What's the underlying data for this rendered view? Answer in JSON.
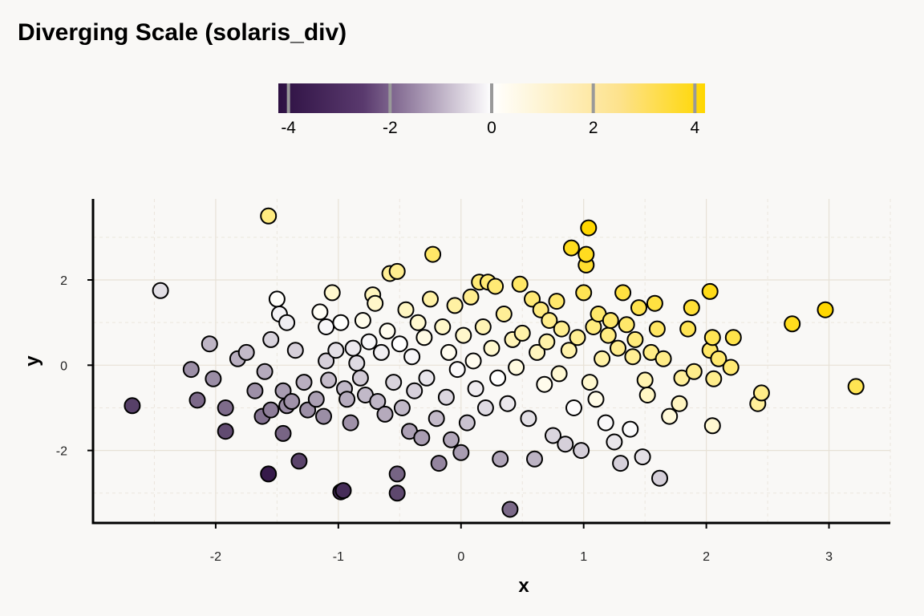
{
  "chart_data": {
    "type": "scatter",
    "title": "Diverging Scale (solaris_div)",
    "xlabel": "x",
    "ylabel": "y",
    "xlim": [
      -3.0,
      3.5
    ],
    "ylim": [
      -3.7,
      3.9
    ],
    "x_ticks": [
      -2,
      -1,
      0,
      1,
      2,
      3
    ],
    "y_ticks": [
      -2,
      0,
      2
    ],
    "grid": true,
    "legend": "colorbar top-center",
    "colorbar": {
      "title": "",
      "range": [
        -4.2,
        4.2
      ],
      "ticks": [
        -4,
        -2,
        0,
        2,
        4
      ],
      "colors": {
        "low": "#2d1042",
        "mid": "#ffffff",
        "high": "#ffd700"
      }
    },
    "colors": {
      "background": "#f9f8f6",
      "grid_major": "#e7e1d6",
      "grid_minor": "#ebe6dd",
      "point_edge": "#000000"
    },
    "points": [
      {
        "x": -2.68,
        "y": -0.95
      },
      {
        "x": -2.45,
        "y": 1.75
      },
      {
        "x": -2.05,
        "y": 0.5
      },
      {
        "x": -2.2,
        "y": -0.1
      },
      {
        "x": -2.15,
        "y": -0.82
      },
      {
        "x": -2.02,
        "y": -0.32
      },
      {
        "x": -1.92,
        "y": -1.0
      },
      {
        "x": -1.92,
        "y": -1.55
      },
      {
        "x": -1.82,
        "y": 0.15
      },
      {
        "x": -1.75,
        "y": 0.3
      },
      {
        "x": -1.68,
        "y": -0.6
      },
      {
        "x": -1.6,
        "y": -0.15
      },
      {
        "x": -1.62,
        "y": -1.2
      },
      {
        "x": -1.55,
        "y": -1.05
      },
      {
        "x": -1.57,
        "y": 3.5
      },
      {
        "x": -1.57,
        "y": -2.55
      },
      {
        "x": -1.55,
        "y": 0.6
      },
      {
        "x": -1.5,
        "y": 1.55
      },
      {
        "x": -1.48,
        "y": 1.2
      },
      {
        "x": -1.42,
        "y": 1.0
      },
      {
        "x": -1.45,
        "y": -0.6
      },
      {
        "x": -1.45,
        "y": -1.6
      },
      {
        "x": -1.42,
        "y": -0.95
      },
      {
        "x": -1.38,
        "y": -0.85
      },
      {
        "x": -1.35,
        "y": 0.35
      },
      {
        "x": -1.32,
        "y": -2.25
      },
      {
        "x": -1.28,
        "y": -0.4
      },
      {
        "x": -1.25,
        "y": -1.05
      },
      {
        "x": -1.18,
        "y": -0.8
      },
      {
        "x": -1.15,
        "y": 1.25
      },
      {
        "x": -1.12,
        "y": -1.2
      },
      {
        "x": -1.1,
        "y": 0.9
      },
      {
        "x": -1.1,
        "y": 0.1
      },
      {
        "x": -1.08,
        "y": -0.35
      },
      {
        "x": -1.05,
        "y": 1.7
      },
      {
        "x": -1.02,
        "y": 0.35
      },
      {
        "x": -0.98,
        "y": 1.0
      },
      {
        "x": -0.98,
        "y": -2.97
      },
      {
        "x": -0.96,
        "y": -2.94
      },
      {
        "x": -0.95,
        "y": -0.55
      },
      {
        "x": -0.93,
        "y": -0.8
      },
      {
        "x": -0.9,
        "y": -1.35
      },
      {
        "x": -0.88,
        "y": 0.4
      },
      {
        "x": -0.85,
        "y": 0.05
      },
      {
        "x": -0.82,
        "y": -0.3
      },
      {
        "x": -0.8,
        "y": 1.05
      },
      {
        "x": -0.78,
        "y": -0.7
      },
      {
        "x": -0.75,
        "y": 0.55
      },
      {
        "x": -0.72,
        "y": 1.65
      },
      {
        "x": -0.7,
        "y": 1.45
      },
      {
        "x": -0.68,
        "y": -0.85
      },
      {
        "x": -0.65,
        "y": 0.3
      },
      {
        "x": -0.62,
        "y": -1.15
      },
      {
        "x": -0.6,
        "y": 0.8
      },
      {
        "x": -0.58,
        "y": 2.15
      },
      {
        "x": -0.55,
        "y": -0.4
      },
      {
        "x": -0.52,
        "y": 2.2
      },
      {
        "x": -0.52,
        "y": -2.55
      },
      {
        "x": -0.52,
        "y": -3.0
      },
      {
        "x": -0.5,
        "y": 0.5
      },
      {
        "x": -0.48,
        "y": -1.0
      },
      {
        "x": -0.45,
        "y": 1.3
      },
      {
        "x": -0.42,
        "y": -1.55
      },
      {
        "x": -0.4,
        "y": 0.2
      },
      {
        "x": -0.38,
        "y": -0.6
      },
      {
        "x": -0.35,
        "y": 1.0
      },
      {
        "x": -0.32,
        "y": -1.7
      },
      {
        "x": -0.3,
        "y": 0.65
      },
      {
        "x": -0.28,
        "y": -0.3
      },
      {
        "x": -0.25,
        "y": 1.55
      },
      {
        "x": -0.23,
        "y": 2.6
      },
      {
        "x": -0.2,
        "y": -1.25
      },
      {
        "x": -0.18,
        "y": -2.3
      },
      {
        "x": -0.15,
        "y": 0.9
      },
      {
        "x": -0.12,
        "y": -0.75
      },
      {
        "x": -0.1,
        "y": 0.3
      },
      {
        "x": -0.08,
        "y": -1.75
      },
      {
        "x": -0.05,
        "y": 1.4
      },
      {
        "x": -0.03,
        "y": -0.1
      },
      {
        "x": 0.0,
        "y": -2.05
      },
      {
        "x": 0.02,
        "y": 0.7
      },
      {
        "x": 0.05,
        "y": -1.35
      },
      {
        "x": 0.08,
        "y": 1.6
      },
      {
        "x": 0.1,
        "y": 0.1
      },
      {
        "x": 0.12,
        "y": -0.55
      },
      {
        "x": 0.15,
        "y": 1.95
      },
      {
        "x": 0.18,
        "y": 0.9
      },
      {
        "x": 0.2,
        "y": -1.0
      },
      {
        "x": 0.22,
        "y": 1.95
      },
      {
        "x": 0.25,
        "y": 0.4
      },
      {
        "x": 0.28,
        "y": 1.85
      },
      {
        "x": 0.3,
        "y": -0.3
      },
      {
        "x": 0.32,
        "y": -2.2
      },
      {
        "x": 0.35,
        "y": 1.2
      },
      {
        "x": 0.38,
        "y": -0.9
      },
      {
        "x": 0.4,
        "y": -3.38
      },
      {
        "x": 0.42,
        "y": 0.6
      },
      {
        "x": 0.45,
        "y": -0.05
      },
      {
        "x": 0.48,
        "y": 1.9
      },
      {
        "x": 0.5,
        "y": 0.75
      },
      {
        "x": 0.55,
        "y": -1.25
      },
      {
        "x": 0.58,
        "y": 1.55
      },
      {
        "x": 0.6,
        "y": -2.2
      },
      {
        "x": 0.62,
        "y": 0.3
      },
      {
        "x": 0.65,
        "y": 1.3
      },
      {
        "x": 0.68,
        "y": -0.45
      },
      {
        "x": 0.7,
        "y": 0.55
      },
      {
        "x": 0.72,
        "y": 1.05
      },
      {
        "x": 0.75,
        "y": -1.65
      },
      {
        "x": 0.78,
        "y": 1.5
      },
      {
        "x": 0.8,
        "y": -0.2
      },
      {
        "x": 0.82,
        "y": 0.85
      },
      {
        "x": 0.85,
        "y": -1.85
      },
      {
        "x": 0.88,
        "y": 0.35
      },
      {
        "x": 0.9,
        "y": 2.75
      },
      {
        "x": 0.92,
        "y": -1.0
      },
      {
        "x": 0.95,
        "y": 0.65
      },
      {
        "x": 0.98,
        "y": -2.0
      },
      {
        "x": 1.0,
        "y": 1.7
      },
      {
        "x": 1.02,
        "y": 2.35
      },
      {
        "x": 1.02,
        "y": 2.6
      },
      {
        "x": 1.04,
        "y": 3.22
      },
      {
        "x": 1.05,
        "y": -0.4
      },
      {
        "x": 1.08,
        "y": 0.9
      },
      {
        "x": 1.1,
        "y": -0.8
      },
      {
        "x": 1.12,
        "y": 1.2
      },
      {
        "x": 1.15,
        "y": 0.15
      },
      {
        "x": 1.18,
        "y": -1.35
      },
      {
        "x": 1.2,
        "y": 0.7
      },
      {
        "x": 1.22,
        "y": 1.05
      },
      {
        "x": 1.25,
        "y": -1.8
      },
      {
        "x": 1.28,
        "y": 0.4
      },
      {
        "x": 1.3,
        "y": -2.3
      },
      {
        "x": 1.32,
        "y": 1.7
      },
      {
        "x": 1.35,
        "y": 0.95
      },
      {
        "x": 1.38,
        "y": -1.5
      },
      {
        "x": 1.4,
        "y": 0.2
      },
      {
        "x": 1.42,
        "y": 0.6
      },
      {
        "x": 1.45,
        "y": 1.35
      },
      {
        "x": 1.48,
        "y": -2.15
      },
      {
        "x": 1.5,
        "y": -0.35
      },
      {
        "x": 1.52,
        "y": -0.7
      },
      {
        "x": 1.55,
        "y": 0.3
      },
      {
        "x": 1.58,
        "y": 1.45
      },
      {
        "x": 1.6,
        "y": 0.85
      },
      {
        "x": 1.62,
        "y": -2.65
      },
      {
        "x": 1.65,
        "y": 0.15
      },
      {
        "x": 1.7,
        "y": -1.2
      },
      {
        "x": 1.78,
        "y": -0.9
      },
      {
        "x": 1.8,
        "y": -0.3
      },
      {
        "x": 1.85,
        "y": 0.85
      },
      {
        "x": 1.88,
        "y": 1.35
      },
      {
        "x": 1.9,
        "y": -0.15
      },
      {
        "x": 2.03,
        "y": 1.73
      },
      {
        "x": 2.03,
        "y": 0.35
      },
      {
        "x": 2.05,
        "y": 0.65
      },
      {
        "x": 2.05,
        "y": -1.42
      },
      {
        "x": 2.06,
        "y": -0.32
      },
      {
        "x": 2.1,
        "y": 0.15
      },
      {
        "x": 2.2,
        "y": -0.05
      },
      {
        "x": 2.22,
        "y": 0.65
      },
      {
        "x": 2.42,
        "y": -0.9
      },
      {
        "x": 2.45,
        "y": -0.65
      },
      {
        "x": 2.7,
        "y": 0.97
      },
      {
        "x": 2.97,
        "y": 1.3
      },
      {
        "x": 3.22,
        "y": -0.5
      }
    ]
  }
}
